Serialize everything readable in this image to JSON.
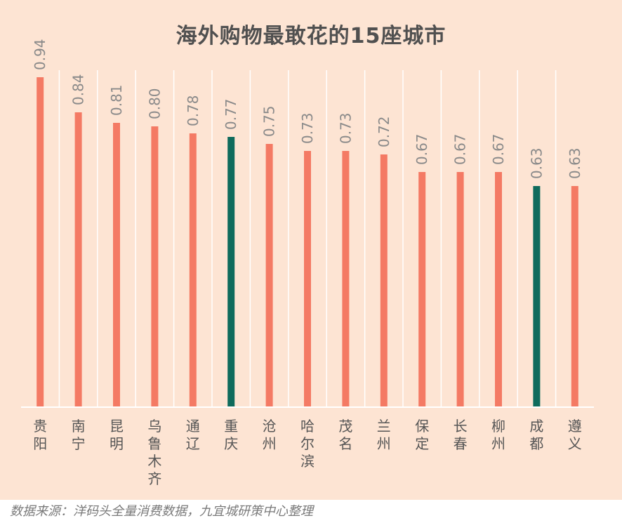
{
  "chart_data": {
    "type": "bar",
    "title": "海外购物最敢花的15座城市",
    "categories": [
      "贵阳",
      "南宁",
      "昆明",
      "乌鲁木齐",
      "通辽",
      "重庆",
      "沧州",
      "哈尔滨",
      "茂名",
      "兰州",
      "保定",
      "长春",
      "柳州",
      "成都",
      "遵义"
    ],
    "values": [
      0.94,
      0.84,
      0.81,
      0.8,
      0.78,
      0.77,
      0.75,
      0.73,
      0.73,
      0.72,
      0.67,
      0.67,
      0.67,
      0.63,
      0.63
    ],
    "data_labels": [
      "0.94",
      "0.84",
      "0.81",
      "0.80",
      "0.78",
      "0.77",
      "0.75",
      "0.73",
      "0.73",
      "0.72",
      "0.67",
      "0.67",
      "0.67",
      "0.63",
      "0.63"
    ],
    "ylim": [
      0,
      1
    ],
    "grid": "vertical separators",
    "colors": {
      "default": "#f47a64",
      "highlight": "#0f6b5c",
      "highlighted_categories": [
        "重庆",
        "成都"
      ]
    }
  },
  "source_note": "数据来源：洋码头全量消费数据，九宜城研策中心整理"
}
